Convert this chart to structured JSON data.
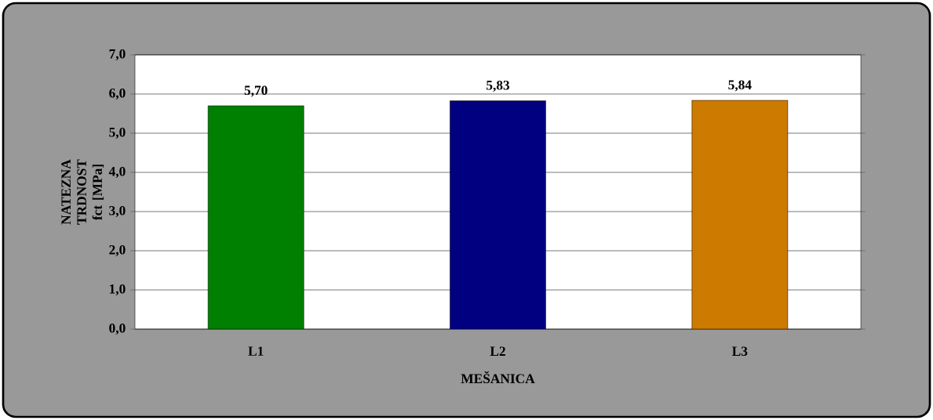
{
  "chart_data": {
    "type": "bar",
    "xlabel": "MEŠANICA",
    "ylabel": "NATEZNA TRDNOST fct [MPa]",
    "categories": [
      "L1",
      "L2",
      "L3"
    ],
    "values": [
      5.7,
      5.83,
      5.84
    ],
    "value_labels": [
      "5,70",
      "5,83",
      "5,84"
    ],
    "colors": [
      "#008000",
      "#000080",
      "#cc7a00"
    ],
    "ylim": [
      0,
      7
    ],
    "yticks": [
      {
        "value": 0,
        "label": "0,0"
      },
      {
        "value": 1,
        "label": "1,0"
      },
      {
        "value": 2,
        "label": "2,0"
      },
      {
        "value": 3,
        "label": "3,0"
      },
      {
        "value": 4,
        "label": "4,0"
      },
      {
        "value": 5,
        "label": "5,0"
      },
      {
        "value": 6,
        "label": "6,0"
      },
      {
        "value": 7,
        "label": "7,0"
      }
    ],
    "grid": "y"
  }
}
